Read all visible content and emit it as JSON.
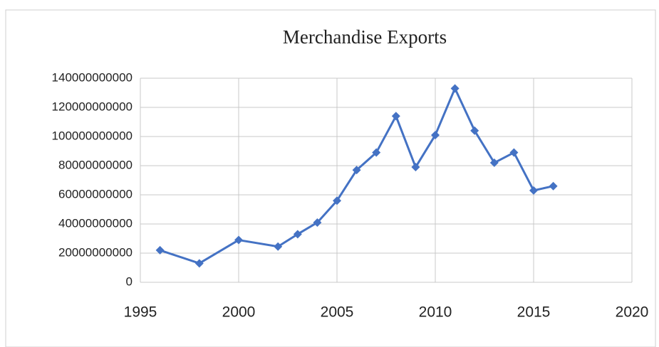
{
  "chart_data": {
    "type": "line",
    "title": "Merchandise Exports",
    "series": [
      {
        "name": "Merchandise Exports",
        "color": "#4472c4",
        "x": [
          1996,
          1998,
          2000,
          2002,
          2003,
          2004,
          2005,
          2006,
          2007,
          2008,
          2009,
          2010,
          2011,
          2012,
          2013,
          2014,
          2015,
          2016
        ],
        "values": [
          22000000000,
          13000000000,
          29000000000,
          24500000000,
          33000000000,
          41000000000,
          56000000000,
          77000000000,
          89000000000,
          114000000000,
          79000000000,
          101000000000,
          133000000000,
          104000000000,
          82000000000,
          89000000000,
          63000000000,
          66000000000
        ]
      }
    ],
    "xlim": [
      1995,
      2020
    ],
    "xticks": [
      1995,
      2000,
      2005,
      2010,
      2015,
      2020
    ],
    "ylim": [
      0,
      140000000000
    ],
    "yticks": [
      0,
      20000000000,
      40000000000,
      60000000000,
      80000000000,
      100000000000,
      120000000000,
      140000000000
    ],
    "grid": true
  }
}
